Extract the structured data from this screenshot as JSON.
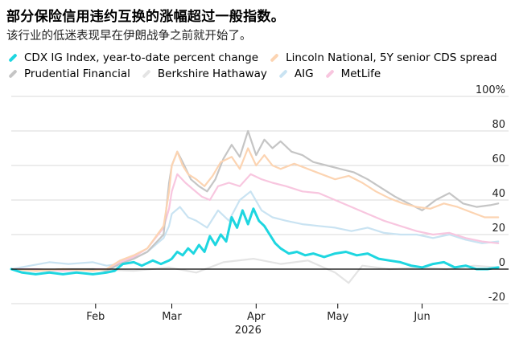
{
  "title": "部分保险信用违约互换的涨幅超过一般指数。",
  "subtitle": "该行业的低迷表现早在伊朗战争之前就开始了。",
  "chart_data": {
    "type": "line",
    "title": "部分保险信用违约互换的涨幅超过一般指数。",
    "subtitle": "该行业的低迷表现早在伊朗战争之前就开始了。",
    "x_labels": [
      "Feb",
      "Mar",
      "Apr",
      "May",
      "Jun"
    ],
    "x_year_label": "2026",
    "y_tick_labels": [
      "100%",
      "80",
      "60",
      "40",
      "20",
      "0",
      "-20"
    ],
    "ylim": [
      -20,
      100
    ],
    "grid": true,
    "legend_position": "top",
    "series": [
      {
        "name": "CDX IG Index, year-to-date percent change",
        "color": "#1ed6e0",
        "points": [
          [
            "2026-01-01",
            0
          ],
          [
            "2026-01-05",
            -2
          ],
          [
            "2026-01-10",
            -3
          ],
          [
            "2026-01-15",
            -2
          ],
          [
            "2026-01-20",
            -3
          ],
          [
            "2026-01-25",
            -2
          ],
          [
            "2026-01-31",
            -3
          ],
          [
            "2026-02-05",
            -2
          ],
          [
            "2026-02-08",
            -1
          ],
          [
            "2026-02-11",
            3
          ],
          [
            "2026-02-15",
            4
          ],
          [
            "2026-02-18",
            2
          ],
          [
            "2026-02-22",
            5
          ],
          [
            "2026-02-25",
            3
          ],
          [
            "2026-02-28",
            5
          ],
          [
            "2026-03-01",
            6
          ],
          [
            "2026-03-03",
            10
          ],
          [
            "2026-03-05",
            8
          ],
          [
            "2026-03-07",
            12
          ],
          [
            "2026-03-09",
            9
          ],
          [
            "2026-03-11",
            14
          ],
          [
            "2026-03-13",
            10
          ],
          [
            "2026-03-15",
            19
          ],
          [
            "2026-03-17",
            14
          ],
          [
            "2026-03-19",
            20
          ],
          [
            "2026-03-21",
            16
          ],
          [
            "2026-03-23",
            30
          ],
          [
            "2026-03-25",
            24
          ],
          [
            "2026-03-27",
            34
          ],
          [
            "2026-03-29",
            26
          ],
          [
            "2026-03-31",
            35
          ],
          [
            "2026-04-02",
            28
          ],
          [
            "2026-04-04",
            25
          ],
          [
            "2026-04-06",
            20
          ],
          [
            "2026-04-08",
            15
          ],
          [
            "2026-04-10",
            12
          ],
          [
            "2026-04-13",
            9
          ],
          [
            "2026-04-16",
            10
          ],
          [
            "2026-04-19",
            8
          ],
          [
            "2026-04-22",
            9
          ],
          [
            "2026-04-26",
            7
          ],
          [
            "2026-04-30",
            9
          ],
          [
            "2026-05-04",
            10
          ],
          [
            "2026-05-08",
            8
          ],
          [
            "2026-05-12",
            9
          ],
          [
            "2026-05-16",
            6
          ],
          [
            "2026-05-20",
            5
          ],
          [
            "2026-05-24",
            4
          ],
          [
            "2026-05-28",
            2
          ],
          [
            "2026-06-01",
            1
          ],
          [
            "2026-06-05",
            3
          ],
          [
            "2026-06-09",
            4
          ],
          [
            "2026-06-13",
            1
          ],
          [
            "2026-06-17",
            2
          ],
          [
            "2026-06-21",
            0
          ],
          [
            "2026-06-25",
            0
          ],
          [
            "2026-06-29",
            1
          ]
        ]
      },
      {
        "name": "Lincoln National, 5Y senior CDS spread",
        "color": "#fcd4b2",
        "points": [
          [
            "2026-01-01",
            0
          ],
          [
            "2026-01-10",
            -1
          ],
          [
            "2026-01-20",
            0
          ],
          [
            "2026-01-31",
            -1
          ],
          [
            "2026-02-05",
            0
          ],
          [
            "2026-02-10",
            5
          ],
          [
            "2026-02-15",
            8
          ],
          [
            "2026-02-20",
            12
          ],
          [
            "2026-02-26",
            25
          ],
          [
            "2026-02-28",
            45
          ],
          [
            "2026-03-01",
            60
          ],
          [
            "2026-03-03",
            68
          ],
          [
            "2026-03-05",
            60
          ],
          [
            "2026-03-07",
            55
          ],
          [
            "2026-03-10",
            52
          ],
          [
            "2026-03-13",
            48
          ],
          [
            "2026-03-16",
            54
          ],
          [
            "2026-03-19",
            62
          ],
          [
            "2026-03-23",
            65
          ],
          [
            "2026-03-26",
            58
          ],
          [
            "2026-03-29",
            70
          ],
          [
            "2026-04-01",
            60
          ],
          [
            "2026-04-04",
            66
          ],
          [
            "2026-04-07",
            60
          ],
          [
            "2026-04-10",
            58
          ],
          [
            "2026-04-15",
            61
          ],
          [
            "2026-04-20",
            58
          ],
          [
            "2026-04-25",
            55
          ],
          [
            "2026-04-30",
            52
          ],
          [
            "2026-05-05",
            54
          ],
          [
            "2026-05-10",
            50
          ],
          [
            "2026-05-15",
            45
          ],
          [
            "2026-05-20",
            41
          ],
          [
            "2026-05-25",
            38
          ],
          [
            "2026-05-30",
            36
          ],
          [
            "2026-06-04",
            35
          ],
          [
            "2026-06-09",
            38
          ],
          [
            "2026-06-14",
            36
          ],
          [
            "2026-06-19",
            33
          ],
          [
            "2026-06-24",
            30
          ],
          [
            "2026-06-29",
            30
          ]
        ]
      },
      {
        "name": "Prudential Financial",
        "color": "#c5c5c5",
        "points": [
          [
            "2026-01-01",
            0
          ],
          [
            "2026-01-10",
            -1
          ],
          [
            "2026-01-20",
            0
          ],
          [
            "2026-01-31",
            0
          ],
          [
            "2026-02-05",
            -1
          ],
          [
            "2026-02-10",
            3
          ],
          [
            "2026-02-15",
            6
          ],
          [
            "2026-02-20",
            10
          ],
          [
            "2026-02-26",
            20
          ],
          [
            "2026-02-28",
            50
          ],
          [
            "2026-03-01",
            60
          ],
          [
            "2026-03-03",
            68
          ],
          [
            "2026-03-05",
            62
          ],
          [
            "2026-03-08",
            52
          ],
          [
            "2026-03-11",
            48
          ],
          [
            "2026-03-14",
            45
          ],
          [
            "2026-03-17",
            52
          ],
          [
            "2026-03-20",
            64
          ],
          [
            "2026-03-23",
            72
          ],
          [
            "2026-03-26",
            65
          ],
          [
            "2026-03-29",
            80
          ],
          [
            "2026-04-01",
            66
          ],
          [
            "2026-04-04",
            75
          ],
          [
            "2026-04-07",
            70
          ],
          [
            "2026-04-10",
            74
          ],
          [
            "2026-04-14",
            68
          ],
          [
            "2026-04-18",
            66
          ],
          [
            "2026-04-22",
            62
          ],
          [
            "2026-04-27",
            60
          ],
          [
            "2026-05-02",
            58
          ],
          [
            "2026-05-07",
            56
          ],
          [
            "2026-05-12",
            52
          ],
          [
            "2026-05-17",
            47
          ],
          [
            "2026-05-22",
            42
          ],
          [
            "2026-05-27",
            38
          ],
          [
            "2026-06-01",
            34
          ],
          [
            "2026-06-06",
            40
          ],
          [
            "2026-06-11",
            44
          ],
          [
            "2026-06-16",
            38
          ],
          [
            "2026-06-21",
            36
          ],
          [
            "2026-06-26",
            37
          ],
          [
            "2026-06-29",
            38
          ]
        ]
      },
      {
        "name": "Berkshire Hathaway",
        "color": "#e4e4e4",
        "points": [
          [
            "2026-01-01",
            0
          ],
          [
            "2026-01-15",
            -1
          ],
          [
            "2026-01-31",
            0
          ],
          [
            "2026-02-15",
            -1
          ],
          [
            "2026-02-28",
            1
          ],
          [
            "2026-03-10",
            -2
          ],
          [
            "2026-03-20",
            4
          ],
          [
            "2026-03-31",
            6
          ],
          [
            "2026-04-10",
            3
          ],
          [
            "2026-04-20",
            5
          ],
          [
            "2026-04-30",
            -2
          ],
          [
            "2026-05-05",
            -8
          ],
          [
            "2026-05-10",
            2
          ],
          [
            "2026-05-20",
            0
          ],
          [
            "2026-05-31",
            1
          ],
          [
            "2026-06-10",
            0
          ],
          [
            "2026-06-20",
            2
          ],
          [
            "2026-06-29",
            1
          ]
        ]
      },
      {
        "name": "AIG",
        "color": "#c9e3f2",
        "points": [
          [
            "2026-01-01",
            0
          ],
          [
            "2026-01-08",
            2
          ],
          [
            "2026-01-15",
            4
          ],
          [
            "2026-01-22",
            3
          ],
          [
            "2026-01-31",
            4
          ],
          [
            "2026-02-05",
            2
          ],
          [
            "2026-02-10",
            3
          ],
          [
            "2026-02-15",
            6
          ],
          [
            "2026-02-20",
            10
          ],
          [
            "2026-02-26",
            18
          ],
          [
            "2026-02-28",
            25
          ],
          [
            "2026-03-01",
            32
          ],
          [
            "2026-03-04",
            36
          ],
          [
            "2026-03-07",
            30
          ],
          [
            "2026-03-10",
            28
          ],
          [
            "2026-03-14",
            24
          ],
          [
            "2026-03-18",
            34
          ],
          [
            "2026-03-22",
            28
          ],
          [
            "2026-03-26",
            40
          ],
          [
            "2026-03-30",
            45
          ],
          [
            "2026-04-03",
            34
          ],
          [
            "2026-04-07",
            30
          ],
          [
            "2026-04-12",
            28
          ],
          [
            "2026-04-18",
            26
          ],
          [
            "2026-04-24",
            25
          ],
          [
            "2026-04-30",
            24
          ],
          [
            "2026-05-06",
            22
          ],
          [
            "2026-05-12",
            24
          ],
          [
            "2026-05-18",
            21
          ],
          [
            "2026-05-24",
            20
          ],
          [
            "2026-05-30",
            20
          ],
          [
            "2026-06-05",
            18
          ],
          [
            "2026-06-11",
            20
          ],
          [
            "2026-06-17",
            17
          ],
          [
            "2026-06-23",
            15
          ],
          [
            "2026-06-29",
            16
          ]
        ]
      },
      {
        "name": "MetLife",
        "color": "#f8c6df",
        "points": [
          [
            "2026-01-01",
            0
          ],
          [
            "2026-01-10",
            0
          ],
          [
            "2026-01-20",
            -1
          ],
          [
            "2026-01-31",
            0
          ],
          [
            "2026-02-05",
            0
          ],
          [
            "2026-02-10",
            4
          ],
          [
            "2026-02-15",
            7
          ],
          [
            "2026-02-20",
            12
          ],
          [
            "2026-02-26",
            24
          ],
          [
            "2026-02-28",
            35
          ],
          [
            "2026-03-01",
            45
          ],
          [
            "2026-03-03",
            55
          ],
          [
            "2026-03-06",
            50
          ],
          [
            "2026-03-09",
            46
          ],
          [
            "2026-03-12",
            42
          ],
          [
            "2026-03-15",
            40
          ],
          [
            "2026-03-18",
            48
          ],
          [
            "2026-03-22",
            50
          ],
          [
            "2026-03-26",
            48
          ],
          [
            "2026-03-30",
            55
          ],
          [
            "2026-04-03",
            52
          ],
          [
            "2026-04-07",
            50
          ],
          [
            "2026-04-12",
            48
          ],
          [
            "2026-04-18",
            45
          ],
          [
            "2026-04-24",
            44
          ],
          [
            "2026-04-30",
            40
          ],
          [
            "2026-05-06",
            36
          ],
          [
            "2026-05-12",
            32
          ],
          [
            "2026-05-18",
            28
          ],
          [
            "2026-05-24",
            25
          ],
          [
            "2026-05-30",
            22
          ],
          [
            "2026-06-05",
            20
          ],
          [
            "2026-06-11",
            21
          ],
          [
            "2026-06-17",
            18
          ],
          [
            "2026-06-23",
            16
          ],
          [
            "2026-06-29",
            15
          ]
        ]
      }
    ]
  },
  "colors": {
    "cdx": "#1ed6e0",
    "lincoln": "#fcd4b2",
    "prudential": "#c5c5c5",
    "berkshire": "#e4e4e4",
    "aig": "#c9e3f2",
    "metlife": "#f8c6df",
    "grid": "#d9d9d9",
    "zero_line": "#000000"
  }
}
